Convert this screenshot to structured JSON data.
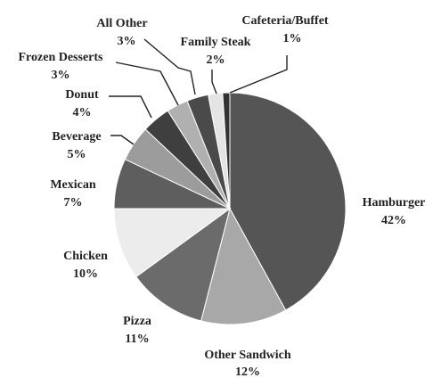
{
  "chart_data": {
    "type": "pie",
    "title": "",
    "start_angle_deg": 0,
    "direction": "clockwise",
    "slices": [
      {
        "label": "Hamburger",
        "value": 42,
        "pct_label": "42%",
        "color": "#555555"
      },
      {
        "label": "Other Sandwich",
        "value": 12,
        "pct_label": "12%",
        "color": "#a8a8a8"
      },
      {
        "label": "Pizza",
        "value": 11,
        "pct_label": "11%",
        "color": "#6b6b6b"
      },
      {
        "label": "Chicken",
        "value": 10,
        "pct_label": "10%",
        "color": "#ececec"
      },
      {
        "label": "Mexican",
        "value": 7,
        "pct_label": "7%",
        "color": "#5e5e5e"
      },
      {
        "label": "Beverage",
        "value": 5,
        "pct_label": "5%",
        "color": "#9c9c9c"
      },
      {
        "label": "Donut",
        "value": 4,
        "pct_label": "4%",
        "color": "#3f3f3f"
      },
      {
        "label": "Frozen Desserts",
        "value": 3,
        "pct_label": "3%",
        "color": "#b0b0b0"
      },
      {
        "label": "All Other",
        "value": 3,
        "pct_label": "3%",
        "color": "#4a4a4a"
      },
      {
        "label": "Family Steak",
        "value": 2,
        "pct_label": "2%",
        "color": "#e4e4e4"
      },
      {
        "label": "Cafeteria/Buffet",
        "value": 1,
        "pct_label": "1%",
        "color": "#333333"
      }
    ]
  }
}
